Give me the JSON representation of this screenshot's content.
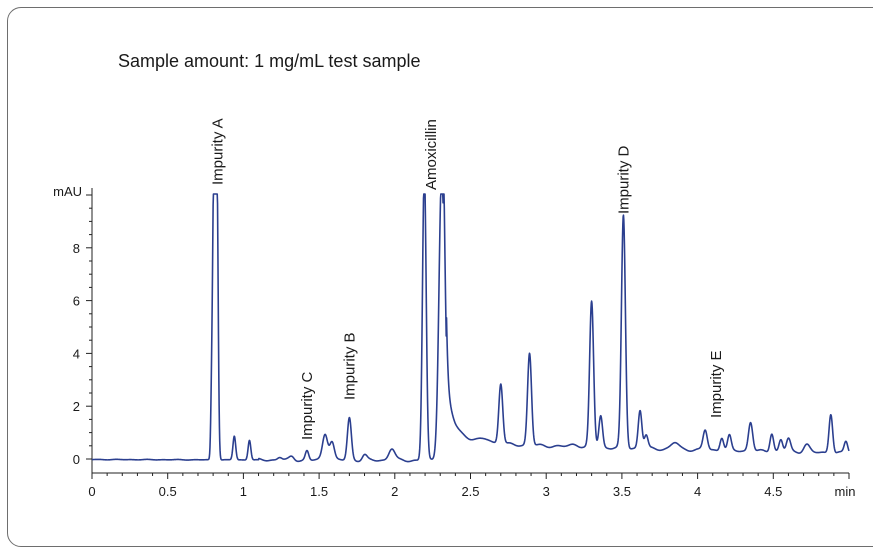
{
  "chart_data": {
    "type": "line",
    "title": "Sample amount: 1 mg/mL test sample",
    "xlabel": "min",
    "ylabel": "mAU",
    "xlim": [
      0,
      5
    ],
    "ylim": [
      -0.25,
      10.3
    ],
    "x_ticks": [
      0,
      0.5,
      1,
      1.5,
      2,
      2.5,
      3,
      3.5,
      4,
      4.5
    ],
    "x_tick_labels": [
      "0",
      "0.5",
      "1",
      "1.5",
      "2",
      "2.5",
      "3",
      "3.5",
      "4",
      "4.5"
    ],
    "y_ticks": [
      0,
      2,
      4,
      6,
      8
    ],
    "y_tick_labels": [
      "0",
      "2",
      "4",
      "6",
      "8"
    ],
    "grid": false,
    "line_color": "#2b3f8f",
    "peaks": [
      {
        "t": 0.79,
        "h": 2.1,
        "w": 0.006
      },
      {
        "t": 0.805,
        "h": 11.0,
        "w": 0.008
      },
      {
        "t": 0.825,
        "h": 11.0,
        "w": 0.008
      },
      {
        "t": 0.94,
        "h": 0.9,
        "w": 0.009
      },
      {
        "t": 1.04,
        "h": 0.75,
        "w": 0.009
      },
      {
        "t": 1.24,
        "h": 0.12,
        "w": 0.015
      },
      {
        "t": 1.32,
        "h": 0.12,
        "w": 0.015
      },
      {
        "t": 1.42,
        "h": 0.35,
        "w": 0.011
      },
      {
        "t": 1.54,
        "h": 1.0,
        "w": 0.017
      },
      {
        "t": 1.585,
        "h": 0.7,
        "w": 0.015
      },
      {
        "t": 1.7,
        "h": 1.6,
        "w": 0.013
      },
      {
        "t": 1.8,
        "h": 0.2,
        "w": 0.015
      },
      {
        "t": 1.98,
        "h": 0.45,
        "w": 0.02
      },
      {
        "t": 2.195,
        "h": 11.0,
        "w": 0.012
      },
      {
        "t": 2.31,
        "h": 11.0,
        "w": 0.018
      },
      {
        "t": 2.6,
        "h": 0.12,
        "w": 0.03
      },
      {
        "t": 2.7,
        "h": 2.3,
        "w": 0.013
      },
      {
        "t": 2.89,
        "h": 3.5,
        "w": 0.013
      },
      {
        "t": 3.19,
        "h": 0.08,
        "w": 0.03
      },
      {
        "t": 3.3,
        "h": 5.5,
        "w": 0.013
      },
      {
        "t": 3.36,
        "h": 1.2,
        "w": 0.012
      },
      {
        "t": 3.51,
        "h": 8.8,
        "w": 0.013
      },
      {
        "t": 3.62,
        "h": 1.45,
        "w": 0.012
      },
      {
        "t": 3.66,
        "h": 0.5,
        "w": 0.012
      },
      {
        "t": 3.85,
        "h": 0.25,
        "w": 0.025
      },
      {
        "t": 4.05,
        "h": 0.75,
        "w": 0.014
      },
      {
        "t": 4.16,
        "h": 0.5,
        "w": 0.012
      },
      {
        "t": 4.21,
        "h": 0.55,
        "w": 0.012
      },
      {
        "t": 4.35,
        "h": 1.1,
        "w": 0.014
      },
      {
        "t": 4.49,
        "h": 0.7,
        "w": 0.012
      },
      {
        "t": 4.55,
        "h": 0.45,
        "w": 0.012
      },
      {
        "t": 4.6,
        "h": 0.5,
        "w": 0.014
      },
      {
        "t": 4.72,
        "h": 0.3,
        "w": 0.02
      },
      {
        "t": 4.88,
        "h": 1.5,
        "w": 0.012
      },
      {
        "t": 4.98,
        "h": 0.45,
        "w": 0.012
      }
    ],
    "tails": [
      {
        "t0": 2.32,
        "a": 3.0,
        "tau": 0.04
      },
      {
        "t0": 2.34,
        "a": 1.3,
        "tau": 0.22
      }
    ],
    "annotations": [
      {
        "text": "Impurity A",
        "x": 0.83
      },
      {
        "text": "Impurity C",
        "x": 1.42
      },
      {
        "text": "Impurity B",
        "x": 1.7
      },
      {
        "text": "Amoxicillin",
        "x": 2.24
      },
      {
        "text": "Impurity D",
        "x": 3.51
      },
      {
        "text": "Impurity E",
        "x": 4.12
      }
    ]
  }
}
